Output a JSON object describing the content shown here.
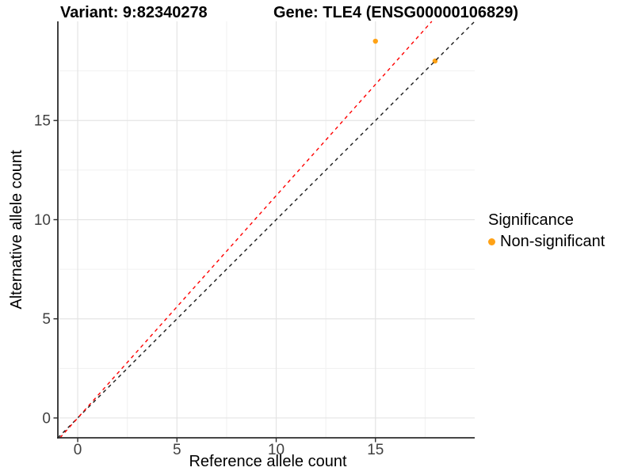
{
  "titles": {
    "variant": "Variant: 9:82340278",
    "gene": "Gene: TLE4 (ENSG00000106829)"
  },
  "legend": {
    "title": "Significance",
    "items": [
      {
        "label": "Non-significant",
        "color": "#FFA216"
      }
    ]
  },
  "chart_data": {
    "type": "scatter",
    "title": "Variant: 9:82340278 | Gene: TLE4 (ENSG00000106829)",
    "xlabel": "Reference allele count",
    "ylabel": "Alternative allele count",
    "xlim": [
      -1,
      20
    ],
    "ylim": [
      -1,
      20
    ],
    "x_ticks": [
      0,
      5,
      10,
      15
    ],
    "y_ticks": [
      0,
      5,
      10,
      15
    ],
    "x_minor_ticks": [
      2.5,
      7.5,
      12.5,
      17.5
    ],
    "y_minor_ticks": [
      2.5,
      7.5,
      12.5,
      17.5
    ],
    "grid": true,
    "legend_position": "right",
    "series": [
      {
        "name": "Non-significant",
        "color": "#FFA216",
        "points": [
          {
            "x": 15,
            "y": 19
          },
          {
            "x": 18,
            "y": 18
          }
        ]
      }
    ],
    "reference_lines": [
      {
        "name": "identity-line",
        "slope": 1.0,
        "intercept": 0,
        "color": "#1a1a1a",
        "style": "dashed"
      },
      {
        "name": "expected-ratio-line",
        "slope": 1.1212,
        "intercept": 0,
        "color": "#ff0000",
        "style": "dashed"
      }
    ],
    "colors": {
      "grid_major": "#e4e4e4",
      "grid_minor": "#f1f1f1",
      "axis_line": "#2b2b2b",
      "tick_label": "#404040"
    }
  }
}
